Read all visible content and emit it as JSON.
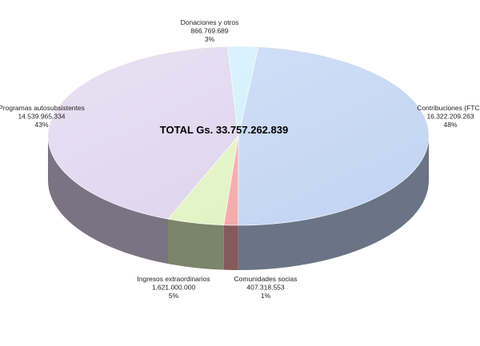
{
  "chart_data": {
    "type": "pie",
    "style": "3d",
    "title": "",
    "annotation": "TOTAL Gs. 33.757.262.839",
    "total": 33757262839,
    "slices": [
      {
        "name": "Contribuciones (FTC )",
        "value_text": "16.322.209.263",
        "value": 16322209263,
        "percent_text": "48%",
        "color": "#c0d3f3"
      },
      {
        "name": "Comunidades socias",
        "value_text": "407.318.553",
        "value": 407318553,
        "percent_text": "1%",
        "color": "#f3a3a3"
      },
      {
        "name": "Ingresos extraordinarios",
        "value_text": "1.621.000.000",
        "value": 1621000000,
        "percent_text": "5%",
        "color": "#dff2bf"
      },
      {
        "name": "Programas autosubsistentes",
        "value_text": "14.539.965.334",
        "value": 14539965334,
        "percent_text": "43%",
        "color": "#dcd1ec"
      },
      {
        "name": "Donaciones y otros",
        "value_text": "866.769.689",
        "value": 866769689,
        "percent_text": "3%",
        "color": "#cdeefa"
      }
    ]
  }
}
